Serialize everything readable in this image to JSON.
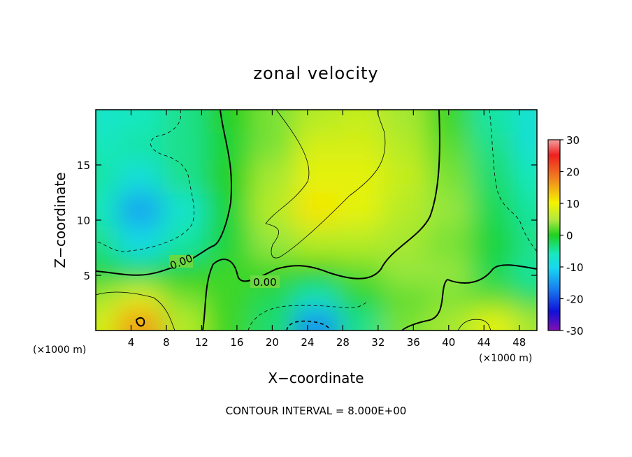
{
  "chart_data": {
    "type": "heatmap",
    "title": "zonal velocity",
    "xlabel": "X−coordinate",
    "ylabel": "Z−coordinate",
    "x_unit_left": "(×1000 m)",
    "x_unit_right": "(×1000 m)",
    "footer": "CONTOUR INTERVAL = 8.000E+00",
    "xlim": [
      0,
      50
    ],
    "ylim": [
      0,
      20
    ],
    "xticks": [
      4,
      8,
      12,
      16,
      20,
      24,
      28,
      32,
      36,
      40,
      44,
      48
    ],
    "yticks": [
      5,
      10,
      15
    ],
    "colorbar": {
      "range": [
        -30,
        30
      ],
      "ticks": [
        30,
        20,
        10,
        0,
        -10,
        -20,
        -30
      ]
    },
    "contour_labels": [
      {
        "text": "0.00",
        "x": 9.0,
        "y": 6.2
      },
      {
        "text": "0.00",
        "x": 19.0,
        "y": 4.4
      }
    ],
    "field_samples": {
      "x": [
        0,
        5,
        10,
        15,
        20,
        25,
        30,
        35,
        40,
        45,
        50
      ],
      "z": [
        1,
        3,
        5,
        8,
        11,
        14,
        17,
        19
      ],
      "values": [
        [
          8,
          16,
          6,
          1,
          -3,
          -14,
          -4,
          3,
          5,
          9,
          5
        ],
        [
          5,
          9,
          3,
          1,
          -2,
          -6,
          -1,
          2,
          3,
          2,
          -2
        ],
        [
          -1,
          -2,
          0,
          1,
          1,
          0,
          2,
          4,
          4,
          -2,
          -5
        ],
        [
          -4,
          -9,
          -5,
          -1,
          4,
          6,
          6,
          5,
          3,
          -1,
          -4
        ],
        [
          -6,
          -13,
          -7,
          -1,
          6,
          11,
          9,
          6,
          4,
          -2,
          -5
        ],
        [
          -5,
          -8,
          -4,
          0,
          5,
          9,
          9,
          7,
          3,
          -3,
          -6
        ],
        [
          -6,
          -5,
          -4,
          -1,
          3,
          8,
          8,
          6,
          2,
          -4,
          -8
        ],
        [
          -7,
          -6,
          -4,
          0,
          3,
          6,
          7,
          5,
          1,
          -5,
          -8
        ]
      ]
    }
  }
}
